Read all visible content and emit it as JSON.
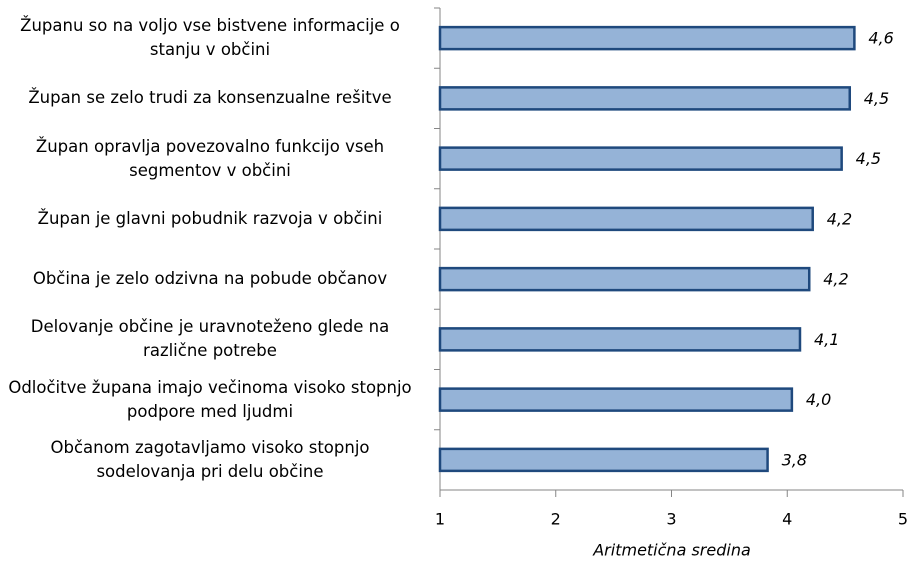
{
  "chart_data": {
    "type": "hbar",
    "categories": [
      "Županu so na voljo vse bistvene informacije o stanju v občini",
      "Župan se zelo trudi za konsenzualne rešitve",
      "Župan opravlja povezovalno funkcijo vseh segmentov v občini",
      "Župan je glavni pobudnik razvoja v občini",
      "Občina je zelo odzivna na pobude občanov",
      "Delovanje občine je uravnoteženo glede na različne potrebe",
      "Odločitve župana imajo večinoma visoko stopnjo podpore med ljudmi",
      "Občanom zagotavljamo visoko stopnjo sodelovanja pri delu občine"
    ],
    "values": [
      4.58,
      4.54,
      4.47,
      4.22,
      4.19,
      4.11,
      4.04,
      3.83
    ],
    "value_labels": [
      "4,6",
      "4,5",
      "4,5",
      "4,2",
      "4,2",
      "4,1",
      "4,0",
      "3,8"
    ],
    "color": "#95b3d7",
    "edge_color": "#1f497d",
    "xlabel": "Aritmetična sredina",
    "xlim": [
      1,
      5
    ],
    "xticks": [
      1,
      2,
      3,
      4,
      5
    ],
    "grid": false
  }
}
